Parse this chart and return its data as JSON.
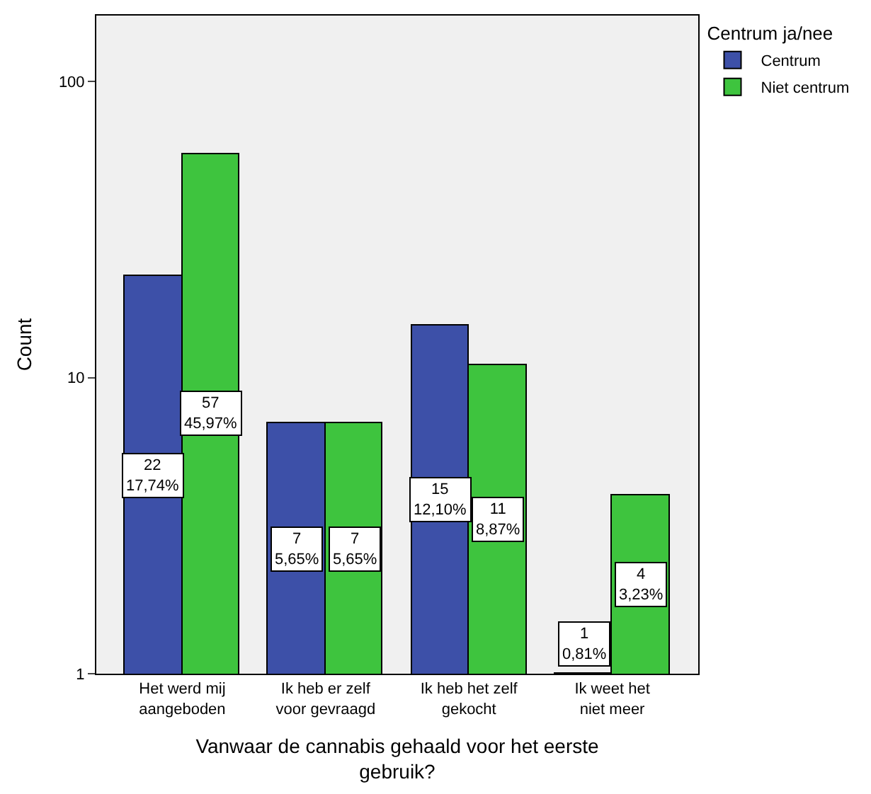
{
  "chart_data": {
    "type": "bar",
    "xlabel": "Vanwaar de cannabis gehaald voor het eerste gebruik?",
    "ylabel": "Count",
    "legend_title": "Centrum ja/nee",
    "legend": "top right",
    "log": "y",
    "ylim": [
      1,
      167
    ],
    "yticks": [
      1,
      10,
      100
    ],
    "grid": false,
    "categories": [
      "Het werd mij aangeboden",
      "Ik heb er zelf voor gevraagd",
      "Ik heb het zelf gekocht",
      "Ik weet het niet meer"
    ],
    "series": [
      {
        "name": "Centrum",
        "color": "#3d50a8",
        "values": [
          22,
          7,
          15,
          1
        ],
        "value_labels": [
          "22\n17,74%",
          "7\n5,65%",
          "15\n12,10%",
          "1\n0,81%"
        ]
      },
      {
        "name": "Niet centrum",
        "color": "#3ec43e",
        "values": [
          57,
          7,
          11,
          4
        ],
        "value_labels": [
          "57\n45,97%",
          "7\n5,65%",
          "11\n8,87%",
          "4\n3,23%"
        ]
      }
    ]
  }
}
